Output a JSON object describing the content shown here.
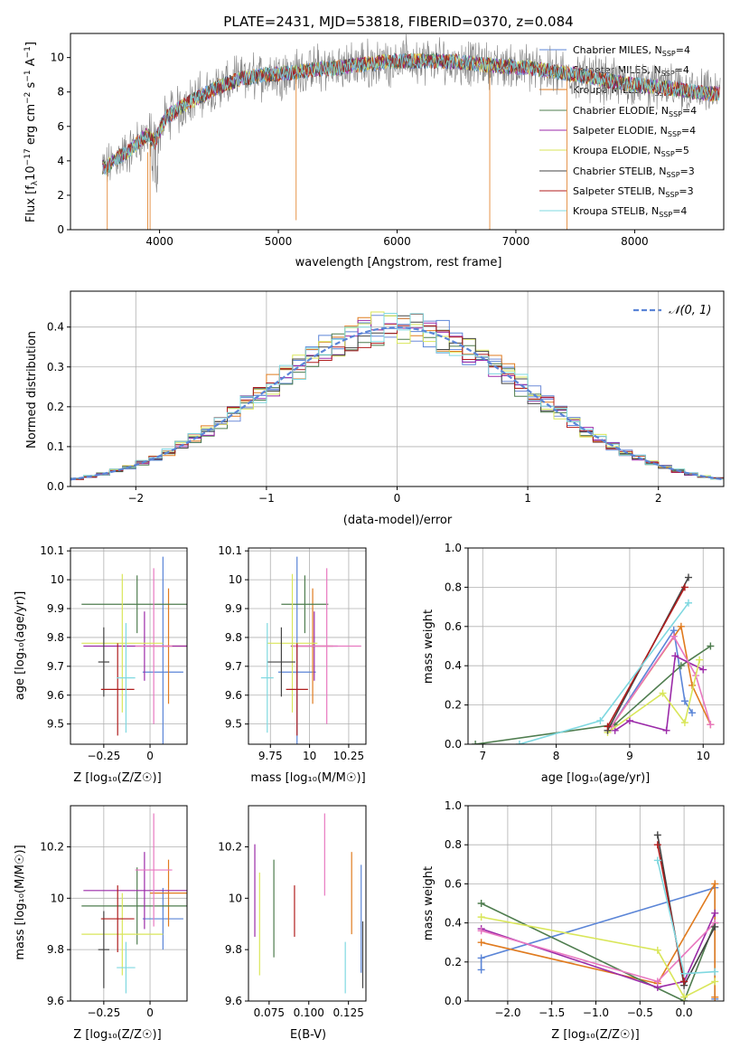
{
  "chart_data": [
    {
      "id": "spectrum",
      "type": "line",
      "title": "PLATE=2431, MJD=53818, FIBERID=0370, z=0.084",
      "xlabel": "wavelength [Angstrom, rest frame]",
      "ylabel_parts": [
        "Flux [f",
        "λ",
        "10",
        "−17",
        " erg cm",
        "−2",
        " s",
        "−1",
        " A",
        "−1",
        "]"
      ],
      "xlim": [
        3250,
        8750
      ],
      "ylim": [
        0,
        11.4
      ],
      "xticks": [
        4000,
        5000,
        6000,
        7000,
        8000
      ],
      "yticks": [
        0,
        2,
        4,
        6,
        8,
        10
      ],
      "grid": false,
      "legend_position": "right",
      "continuum_points": [
        [
          3550,
          3.6
        ],
        [
          3650,
          4.2
        ],
        [
          3750,
          4.6
        ],
        [
          3850,
          5.3
        ],
        [
          3900,
          5.5
        ],
        [
          3960,
          5.1
        ],
        [
          4050,
          6.5
        ],
        [
          4150,
          7.0
        ],
        [
          4300,
          7.6
        ],
        [
          4500,
          8.3
        ],
        [
          4700,
          8.8
        ],
        [
          4900,
          9.0
        ],
        [
          5100,
          9.1
        ],
        [
          5300,
          9.3
        ],
        [
          5500,
          9.4
        ],
        [
          5700,
          9.6
        ],
        [
          5900,
          9.75
        ],
        [
          6100,
          9.8
        ],
        [
          6300,
          9.8
        ],
        [
          6500,
          9.75
        ],
        [
          6700,
          9.6
        ],
        [
          6900,
          9.5
        ],
        [
          7100,
          9.4
        ],
        [
          7300,
          9.2
        ],
        [
          7600,
          8.9
        ],
        [
          7900,
          8.5
        ],
        [
          8200,
          8.3
        ],
        [
          8600,
          7.9
        ]
      ],
      "series": [
        {
          "name": "Chabrier MILES, N",
          "sub": "SSP",
          "suffix": "=4",
          "color": "#5b85d7"
        },
        {
          "name": "Salpeter MILES, N",
          "sub": "SSP",
          "suffix": "=4",
          "color": "#6f8bd8"
        },
        {
          "name": "Kroupa MILES, N",
          "sub": "SSP",
          "suffix": "=4",
          "color": "#e07b1f"
        },
        {
          "name": "Chabrier ELODIE, N",
          "sub": "SSP",
          "suffix": "=4",
          "color": "#4f7d4f"
        },
        {
          "name": "Salpeter ELODIE, N",
          "sub": "SSP",
          "suffix": "=4",
          "color": "#9b2aa8"
        },
        {
          "name": "Kroupa ELODIE, N",
          "sub": "SSP",
          "suffix": "=5",
          "color": "#d9e65a"
        },
        {
          "name": "Chabrier STELIB, N",
          "sub": "SSP",
          "suffix": "=3",
          "color": "#444444"
        },
        {
          "name": "Salpeter STELIB, N",
          "sub": "SSP",
          "suffix": "=3",
          "color": "#b01d1d"
        },
        {
          "name": "Kroupa STELIB, N",
          "sub": "SSP",
          "suffix": "=4",
          "color": "#7fd8e0"
        }
      ],
      "data_color": "#808080"
    },
    {
      "id": "residuals",
      "type": "histogram",
      "xlabel": "(data-model)/error",
      "ylabel": "Normed distribution",
      "xlim": [
        -2.5,
        2.5
      ],
      "ylim": [
        0,
        0.49
      ],
      "xticks": [
        -2,
        -1,
        0,
        1,
        2
      ],
      "yticks": [
        0.0,
        0.1,
        0.2,
        0.3,
        0.4
      ],
      "grid": true,
      "legend": "𝒩(0, 1)",
      "legend_position": "top-right",
      "gaussian_color": "#5b85d7",
      "bin_width": 0.1
    },
    {
      "id": "age_vs_Z",
      "type": "errorbar",
      "xlabel": "Z [log₁₀(Z/Z☉)]",
      "ylabel": "age  [log₁₀(age/yr)]",
      "xlim": [
        -0.43,
        0.2
      ],
      "ylim": [
        9.43,
        10.11
      ],
      "xticks": [
        -0.25,
        0.0
      ],
      "yticks": [
        9.5,
        9.6,
        9.7,
        9.8,
        9.9,
        10.0,
        10.1
      ],
      "grid": true,
      "points": [
        {
          "x": 0.07,
          "xerr": 0.11,
          "y": 9.68,
          "yerr": 0.4,
          "color": "#5b85d7"
        },
        {
          "x": 0.1,
          "xerr": 0.1,
          "y": 9.77,
          "yerr": 0.2,
          "color": "#e07b1f"
        },
        {
          "x": -0.07,
          "xerr": 0.3,
          "y": 9.915,
          "yerr": 0.1,
          "color": "#4f7d4f"
        },
        {
          "x": -0.03,
          "xerr": 0.33,
          "y": 9.77,
          "yerr": 0.12,
          "color": "#9b2aa8"
        },
        {
          "x": 0.02,
          "xerr": 0.1,
          "y": 9.77,
          "yerr": 0.27,
          "color": "#e878c0"
        },
        {
          "x": -0.15,
          "xerr": 0.22,
          "y": 9.78,
          "yerr": 0.24,
          "color": "#d9e65a"
        },
        {
          "x": -0.25,
          "xerr": 0.03,
          "y": 9.715,
          "yerr": 0.12,
          "color": "#444444"
        },
        {
          "x": -0.175,
          "xerr": 0.09,
          "y": 9.62,
          "yerr": 0.16,
          "color": "#b01d1d"
        },
        {
          "x": -0.13,
          "xerr": 0.05,
          "y": 9.66,
          "yerr": 0.19,
          "color": "#7fd8e0"
        }
      ]
    },
    {
      "id": "age_vs_mass",
      "type": "errorbar",
      "xlabel": "mass [log₁₀(M/M☉)]",
      "ylabel": "",
      "xlim": [
        9.61,
        10.36
      ],
      "ylim": [
        9.43,
        10.11
      ],
      "xticks": [
        9.75,
        10.0,
        10.25
      ],
      "yticks": [
        9.5,
        9.6,
        9.7,
        9.8,
        9.9,
        10.0,
        10.1
      ],
      "grid": true,
      "points": [
        {
          "x": 9.92,
          "xerr": 0.12,
          "y": 9.68,
          "yerr": 0.4,
          "color": "#5b85d7"
        },
        {
          "x": 10.02,
          "xerr": 0.13,
          "y": 9.77,
          "yerr": 0.2,
          "color": "#e07b1f"
        },
        {
          "x": 9.97,
          "xerr": 0.15,
          "y": 9.915,
          "yerr": 0.1,
          "color": "#4f7d4f"
        },
        {
          "x": 10.03,
          "xerr": 0.15,
          "y": 9.77,
          "yerr": 0.12,
          "color": "#9b2aa8"
        },
        {
          "x": 10.11,
          "xerr": 0.22,
          "y": 9.77,
          "yerr": 0.27,
          "color": "#e878c0"
        },
        {
          "x": 9.89,
          "xerr": 0.16,
          "y": 9.78,
          "yerr": 0.24,
          "color": "#d9e65a"
        },
        {
          "x": 9.82,
          "xerr": 0.09,
          "y": 9.715,
          "yerr": 0.12,
          "color": "#444444"
        },
        {
          "x": 9.92,
          "xerr": 0.07,
          "y": 9.62,
          "yerr": 0.16,
          "color": "#b01d1d"
        },
        {
          "x": 9.73,
          "xerr": 0.04,
          "y": 9.66,
          "yerr": 0.19,
          "color": "#7fd8e0"
        }
      ]
    },
    {
      "id": "weight_vs_age",
      "type": "line",
      "xlabel": "age  [log₁₀(age/yr)]",
      "ylabel": "mass weight",
      "xlim": [
        6.8,
        10.28
      ],
      "ylim": [
        0,
        1.0
      ],
      "xticks": [
        7,
        8,
        9,
        10
      ],
      "yticks": [
        0.0,
        0.2,
        0.4,
        0.6,
        0.8,
        1.0
      ],
      "grid": true,
      "series": [
        {
          "color": "#5b85d7",
          "points": [
            [
              8.75,
              0.09
            ],
            [
              9.6,
              0.58
            ],
            [
              9.75,
              0.22
            ],
            [
              9.85,
              0.16
            ]
          ]
        },
        {
          "color": "#e07b1f",
          "points": [
            [
              8.75,
              0.09
            ],
            [
              9.7,
              0.6
            ],
            [
              9.85,
              0.3
            ],
            [
              10.1,
              0.1
            ]
          ]
        },
        {
          "color": "#4f7d4f",
          "points": [
            [
              6.9,
              0.0
            ],
            [
              8.8,
              0.1
            ],
            [
              9.7,
              0.4
            ],
            [
              10.1,
              0.5
            ]
          ]
        },
        {
          "color": "#9b2aa8",
          "points": [
            [
              8.8,
              0.07
            ],
            [
              9.0,
              0.12
            ],
            [
              9.5,
              0.07
            ],
            [
              9.62,
              0.45
            ],
            [
              10.0,
              0.38
            ]
          ]
        },
        {
          "color": "#e878c0",
          "points": [
            [
              8.75,
              0.09
            ],
            [
              9.6,
              0.55
            ],
            [
              9.9,
              0.35
            ],
            [
              10.1,
              0.1
            ]
          ]
        },
        {
          "color": "#d9e65a",
          "points": [
            [
              8.7,
              0.06
            ],
            [
              9.45,
              0.26
            ],
            [
              9.75,
              0.11
            ],
            [
              9.95,
              0.43
            ]
          ]
        },
        {
          "color": "#444444",
          "points": [
            [
              8.7,
              0.07
            ],
            [
              9.8,
              0.85
            ]
          ]
        },
        {
          "color": "#b01d1d",
          "points": [
            [
              8.7,
              0.09
            ],
            [
              9.75,
              0.8
            ]
          ]
        },
        {
          "color": "#7fd8e0",
          "points": [
            [
              7.5,
              0.0
            ],
            [
              8.6,
              0.12
            ],
            [
              9.8,
              0.72
            ]
          ]
        }
      ]
    },
    {
      "id": "mass_vs_Z",
      "type": "errorbar",
      "xlabel": "Z [log₁₀(Z/Z☉)]",
      "ylabel": "mass [log₁₀(M/M☉)]",
      "xlim": [
        -0.43,
        0.2
      ],
      "ylim": [
        9.6,
        10.36
      ],
      "xticks": [
        -0.25,
        0.0
      ],
      "yticks": [
        9.6,
        9.8,
        10.0,
        10.2
      ],
      "grid": true,
      "points": [
        {
          "x": 0.07,
          "xerr": 0.11,
          "y": 9.92,
          "yerr": 0.12,
          "color": "#5b85d7"
        },
        {
          "x": 0.1,
          "xerr": 0.1,
          "y": 10.02,
          "yerr": 0.13,
          "color": "#e07b1f"
        },
        {
          "x": -0.07,
          "xerr": 0.3,
          "y": 9.97,
          "yerr": 0.15,
          "color": "#4f7d4f"
        },
        {
          "x": -0.03,
          "xerr": 0.33,
          "y": 10.03,
          "yerr": 0.15,
          "color": "#9b2aa8"
        },
        {
          "x": 0.02,
          "xerr": 0.1,
          "y": 10.11,
          "yerr": 0.22,
          "color": "#e878c0"
        },
        {
          "x": -0.15,
          "xerr": 0.22,
          "y": 9.86,
          "yerr": 0.16,
          "color": "#d9e65a"
        },
        {
          "x": -0.25,
          "xerr": 0.03,
          "y": 9.8,
          "yerr": 0.15,
          "color": "#444444"
        },
        {
          "x": -0.175,
          "xerr": 0.09,
          "y": 9.92,
          "yerr": 0.13,
          "color": "#b01d1d"
        },
        {
          "x": -0.13,
          "xerr": 0.05,
          "y": 9.73,
          "yerr": 0.1,
          "color": "#7fd8e0"
        }
      ]
    },
    {
      "id": "mass_vs_ebv",
      "type": "errorbar",
      "xlabel": "E(B-V)",
      "ylabel": "",
      "xlim": [
        0.062,
        0.136
      ],
      "ylim": [
        9.6,
        10.36
      ],
      "xticks": [
        0.075,
        0.1,
        0.125
      ],
      "xtick_labels": [
        "0.075",
        "0.100",
        "0.125"
      ],
      "yticks": [
        9.6,
        9.8,
        10.0,
        10.2
      ],
      "grid": false,
      "points": [
        {
          "x": 0.133,
          "xerr": 0,
          "y": 9.92,
          "yerr": 0.21,
          "color": "#5b85d7"
        },
        {
          "x": 0.127,
          "xerr": 0,
          "y": 10.02,
          "yerr": 0.16,
          "color": "#e07b1f"
        },
        {
          "x": 0.078,
          "xerr": 0,
          "y": 9.96,
          "yerr": 0.19,
          "color": "#4f7d4f"
        },
        {
          "x": 0.066,
          "xerr": 0,
          "y": 10.03,
          "yerr": 0.18,
          "color": "#9b2aa8"
        },
        {
          "x": 0.11,
          "xerr": 0,
          "y": 10.17,
          "yerr": 0.16,
          "color": "#e878c0"
        },
        {
          "x": 0.069,
          "xerr": 0,
          "y": 9.9,
          "yerr": 0.2,
          "color": "#d9e65a"
        },
        {
          "x": 0.134,
          "xerr": 0,
          "y": 9.78,
          "yerr": 0.13,
          "color": "#444444"
        },
        {
          "x": 0.091,
          "xerr": 0,
          "y": 9.95,
          "yerr": 0.1,
          "color": "#b01d1d"
        },
        {
          "x": 0.123,
          "xerr": 0,
          "y": 9.73,
          "yerr": 0.1,
          "color": "#7fd8e0"
        }
      ]
    },
    {
      "id": "weight_vs_Z",
      "type": "line",
      "xlabel": "Z [log₁₀(Z/Z☉)]",
      "ylabel": "mass weight",
      "xlim": [
        -2.45,
        0.45
      ],
      "ylim": [
        0,
        1.0
      ],
      "xticks": [
        -2.0,
        -1.5,
        -1.0,
        -0.5,
        0.0
      ],
      "xtick_labels": [
        "−2.0",
        "−1.5",
        "−1.0",
        "−0.5",
        "0.0"
      ],
      "yticks": [
        0.0,
        0.2,
        0.4,
        0.6,
        0.8,
        1.0
      ],
      "grid": true,
      "series": [
        {
          "color": "#5b85d7",
          "points": [
            [
              -2.3,
              0.16
            ],
            [
              -2.3,
              0.22
            ],
            [
              0.35,
              0.58
            ],
            [
              0.35,
              0.01
            ]
          ]
        },
        {
          "color": "#e07b1f",
          "points": [
            [
              -2.3,
              0.3
            ],
            [
              -0.3,
              0.09
            ],
            [
              0.35,
              0.6
            ],
            [
              0.35,
              0.02
            ]
          ]
        },
        {
          "color": "#4f7d4f",
          "points": [
            [
              -2.3,
              0.5
            ],
            [
              0.0,
              0.0
            ],
            [
              0.35,
              0.4
            ]
          ]
        },
        {
          "color": "#9b2aa8",
          "points": [
            [
              -2.3,
              0.37
            ],
            [
              -0.3,
              0.07
            ],
            [
              0.0,
              0.1
            ],
            [
              0.35,
              0.45
            ]
          ]
        },
        {
          "color": "#e878c0",
          "points": [
            [
              -2.3,
              0.36
            ],
            [
              -0.3,
              0.1
            ],
            [
              0.35,
              0.4
            ]
          ]
        },
        {
          "color": "#d9e65a",
          "points": [
            [
              -2.3,
              0.43
            ],
            [
              -0.3,
              0.26
            ],
            [
              0.0,
              0.02
            ],
            [
              0.35,
              0.1
            ]
          ]
        },
        {
          "color": "#444444",
          "points": [
            [
              -0.3,
              0.85
            ],
            [
              0.0,
              0.08
            ],
            [
              0.35,
              0.38
            ]
          ]
        },
        {
          "color": "#b01d1d",
          "points": [
            [
              -0.3,
              0.8
            ],
            [
              0.0,
              0.1
            ]
          ]
        },
        {
          "color": "#7fd8e0",
          "points": [
            [
              -0.3,
              0.72
            ],
            [
              0.0,
              0.14
            ],
            [
              0.35,
              0.15
            ]
          ]
        }
      ]
    }
  ]
}
